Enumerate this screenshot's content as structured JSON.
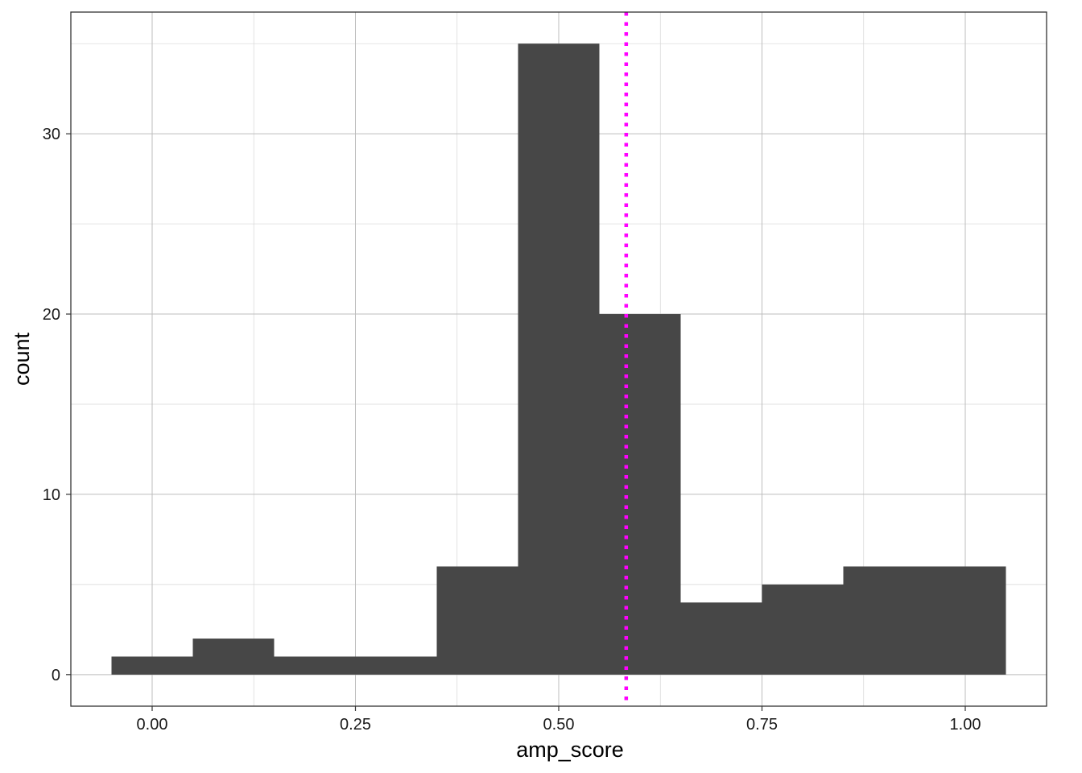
{
  "chart_data": {
    "type": "bar",
    "subtype": "histogram",
    "xlabel": "amp_score",
    "ylabel": "count",
    "xlim": [
      -0.1,
      1.1
    ],
    "ylim": [
      -1.75,
      36.75
    ],
    "x_ticks": [
      0.0,
      0.25,
      0.5,
      0.75,
      1.0
    ],
    "x_tick_labels": [
      "0.00",
      "0.25",
      "0.50",
      "0.75",
      "1.00"
    ],
    "y_ticks": [
      0,
      10,
      20,
      30
    ],
    "y_tick_labels": [
      "0",
      "10",
      "20",
      "30"
    ],
    "grid": true,
    "bin_width": 0.1,
    "bins": [
      {
        "start": -0.05,
        "end": 0.05,
        "count": 1
      },
      {
        "start": 0.05,
        "end": 0.15,
        "count": 2
      },
      {
        "start": 0.15,
        "end": 0.25,
        "count": 1
      },
      {
        "start": 0.25,
        "end": 0.35,
        "count": 1
      },
      {
        "start": 0.35,
        "end": 0.45,
        "count": 6
      },
      {
        "start": 0.45,
        "end": 0.55,
        "count": 35
      },
      {
        "start": 0.55,
        "end": 0.65,
        "count": 20
      },
      {
        "start": 0.65,
        "end": 0.75,
        "count": 4
      },
      {
        "start": 0.75,
        "end": 0.85,
        "count": 5
      },
      {
        "start": 0.85,
        "end": 0.95,
        "count": 6
      },
      {
        "start": 0.95,
        "end": 1.05,
        "count": 6
      }
    ],
    "reference_line": {
      "orientation": "vertical",
      "x": 0.583,
      "style": "dotted",
      "color": "#ff00ff"
    },
    "colors": {
      "bar": "#474747",
      "grid": "#d6d6d6",
      "grid_major": "#bdbdbd",
      "panel_border": "#333333",
      "background": "#ffffff"
    }
  }
}
